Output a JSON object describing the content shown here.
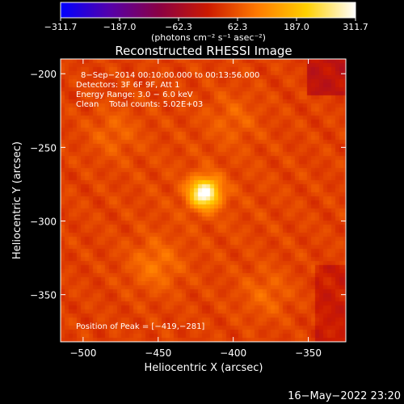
{
  "chart_data": {
    "type": "heatmap",
    "title": "Reconstructed RHESSI Image",
    "xlabel": "Heliocentric X (arcsec)",
    "ylabel": "Heliocentric Y (arcsec)",
    "xlim": [
      -515,
      -325
    ],
    "ylim": [
      -382,
      -190
    ],
    "x_ticks": [
      -500,
      -450,
      -400,
      -350
    ],
    "y_ticks": [
      -200,
      -250,
      -300,
      -350
    ],
    "x_tick_labels": [
      "−500",
      "−450",
      "−400",
      "−350"
    ],
    "y_tick_labels": [
      "−200",
      "−250",
      "−300",
      "−350"
    ],
    "colorbar": {
      "min": -311.7,
      "max": 311.7,
      "tick_values": [
        -311.7,
        -187.0,
        -62.3,
        62.3,
        187.0,
        311.7
      ],
      "tick_labels": [
        "−311.7",
        "−187.0",
        "−62.3",
        "62.3",
        "187.0",
        "311.7"
      ],
      "unit_label": "(photons cm⁻² s⁻¹ asec⁻²)",
      "colors": [
        "#0000ff",
        "#5500aa",
        "#8a0044",
        "#cc1a00",
        "#ff7a00",
        "#ffd000",
        "#ffffff"
      ]
    },
    "annotations": [
      "8−Sep−2014 00:10:00.000 to 00:13:56.000",
      "Detectors: 3F 6F 9F, Att 1",
      "Energy Range: 3.0 − 6.0 keV",
      "Clean    Total counts: 5.02E+03"
    ],
    "peak_label": "Position of Peak = [−419,−281]",
    "peak": [
      -419,
      -281
    ],
    "sources": [
      {
        "x": -419,
        "y": -281,
        "value": 311.7
      },
      {
        "x": -452,
        "y": -330,
        "value": 150
      },
      {
        "x": -378,
        "y": -350,
        "value": 110
      },
      {
        "x": -480,
        "y": -240,
        "value": 100
      },
      {
        "x": -400,
        "y": -230,
        "value": 90
      }
    ]
  },
  "footer": {
    "timestamp": "16−May−2022 23:20"
  }
}
